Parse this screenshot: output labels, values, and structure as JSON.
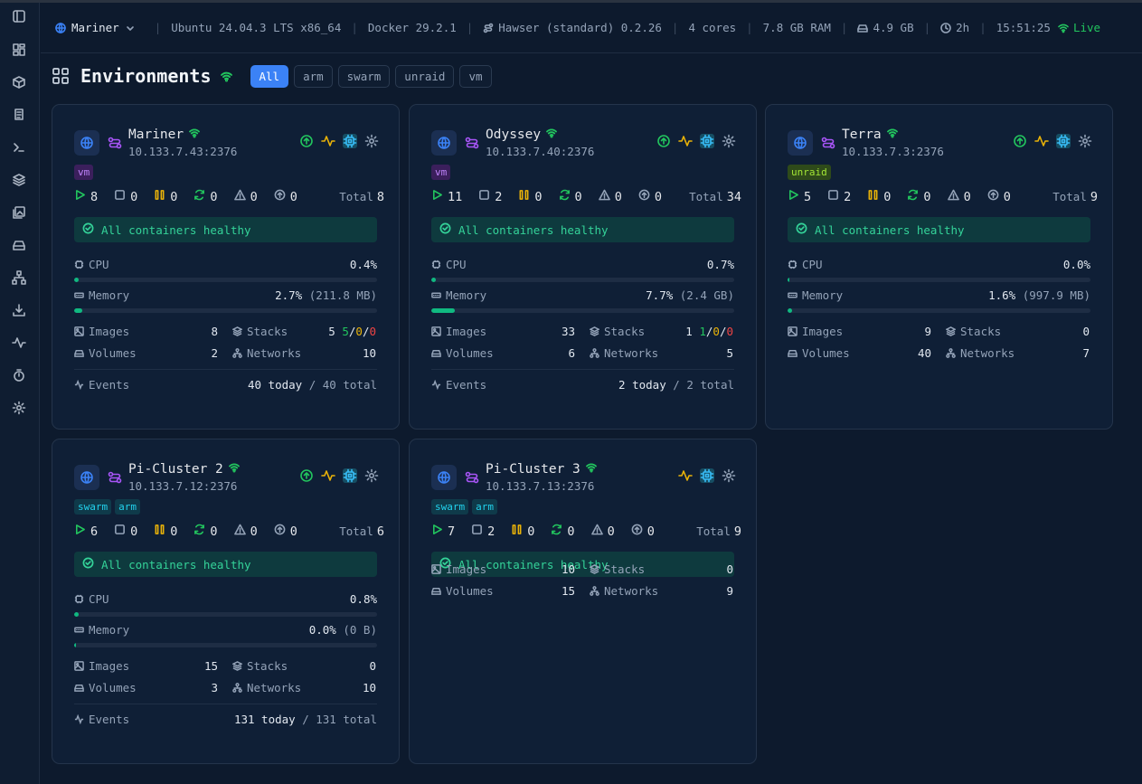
{
  "topbar": {
    "env": "Mariner",
    "os": "Ubuntu 24.04.3 LTS x86_64",
    "docker": "Docker 29.2.1",
    "hawser": "Hawser (standard) 0.2.26",
    "cores": "4 cores",
    "ram": "7.8 GB RAM",
    "disk": "4.9 GB",
    "uptime": "2h",
    "time": "15:51:25",
    "live": "Live"
  },
  "page": {
    "title": "Environments",
    "filters": [
      "All",
      "arm",
      "swarm",
      "unraid",
      "vm"
    ]
  },
  "labels": {
    "total": "Total",
    "cpu": "CPU",
    "memory": "Memory",
    "images": "Images",
    "stacks": "Stacks",
    "volumes": "Volumes",
    "networks": "Networks",
    "events": "Events"
  },
  "cards": [
    {
      "name": "Mariner",
      "host": "10.133.7.43:2376",
      "tags": [
        "vm"
      ],
      "running": "8",
      "stopped": "0",
      "paused": "0",
      "restarting": "0",
      "unhealthy": "0",
      "pending": "0",
      "total": "8",
      "health": "All containers healthy",
      "cpu": "0.4%",
      "cpu_pct": 0.4,
      "mem": "2.7%",
      "mem_sub": "(211.8 MB)",
      "mem_pct": 2.7,
      "images": "8",
      "stacks": "5",
      "stacks_g": "5",
      "stacks_y": "0",
      "stacks_r": "0",
      "volumes": "2",
      "networks": "10",
      "events_today": "40 today",
      "events_total": "/ 40 total"
    },
    {
      "name": "Odyssey",
      "host": "10.133.7.40:2376",
      "tags": [
        "vm"
      ],
      "running": "11",
      "stopped": "2",
      "paused": "0",
      "restarting": "0",
      "unhealthy": "0",
      "pending": "0",
      "total": "34",
      "health": "All containers healthy",
      "cpu": "0.7%",
      "cpu_pct": 0.7,
      "mem": "7.7%",
      "mem_sub": "(2.4 GB)",
      "mem_pct": 7.7,
      "images": "33",
      "stacks": "1",
      "stacks_g": "1",
      "stacks_y": "0",
      "stacks_r": "0",
      "volumes": "6",
      "networks": "5",
      "events_today": "2 today",
      "events_total": "/ 2 total"
    },
    {
      "name": "Terra",
      "host": "10.133.7.3:2376",
      "tags": [
        "unraid"
      ],
      "running": "5",
      "stopped": "2",
      "paused": "0",
      "restarting": "0",
      "unhealthy": "0",
      "pending": "0",
      "total": "9",
      "health": "All containers healthy",
      "cpu": "0.0%",
      "cpu_pct": 0.0,
      "mem": "1.6%",
      "mem_sub": "(997.9 MB)",
      "mem_pct": 1.6,
      "images": "9",
      "stacks": "0",
      "volumes": "40",
      "networks": "7"
    },
    {
      "name": "Pi-Cluster 2",
      "host": "10.133.7.12:2376",
      "tags": [
        "swarm",
        "arm"
      ],
      "running": "6",
      "stopped": "0",
      "paused": "0",
      "restarting": "0",
      "unhealthy": "0",
      "pending": "0",
      "total": "6",
      "health": "All containers healthy",
      "cpu": "0.8%",
      "cpu_pct": 0.8,
      "mem": "0.0%",
      "mem_sub": "(0 B)",
      "mem_pct": 0.0,
      "images": "15",
      "stacks": "0",
      "volumes": "3",
      "networks": "10",
      "events_today": "131 today",
      "events_total": "/ 131 total"
    },
    {
      "name": "Pi-Cluster 3",
      "host": "10.133.7.13:2376",
      "tags": [
        "swarm",
        "arm"
      ],
      "running": "7",
      "stopped": "2",
      "paused": "0",
      "restarting": "0",
      "unhealthy": "0",
      "pending": "0",
      "total": "9",
      "health": "All containers healthy",
      "images": "10",
      "stacks": "0",
      "volumes": "15",
      "networks": "9"
    }
  ]
}
